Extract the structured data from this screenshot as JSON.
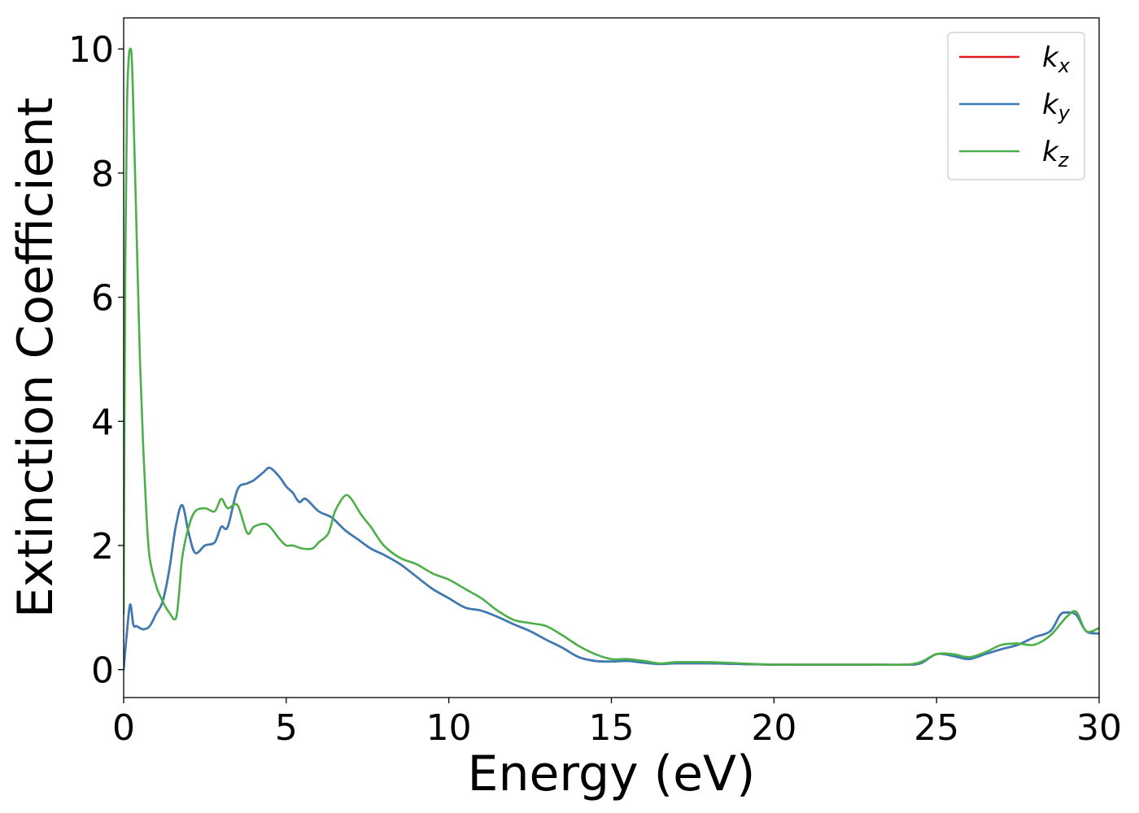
{
  "chart_data": {
    "type": "line",
    "title": "",
    "xlabel": "Energy (eV)",
    "ylabel": "Extinction Coefficient",
    "xlim": [
      0,
      30
    ],
    "ylim": [
      -0.45,
      10.5
    ],
    "xticks": [
      0,
      5,
      10,
      15,
      20,
      25,
      30
    ],
    "yticks": [
      0,
      2,
      4,
      6,
      8,
      10
    ],
    "grid": false,
    "legend_position": "top-right",
    "series": [
      {
        "name": "k",
        "subscript": "x",
        "color": "#e41a1c",
        "x": [
          0,
          0.1,
          0.2,
          0.3,
          0.4,
          0.6,
          0.8,
          1.0,
          1.2,
          1.4,
          1.6,
          1.8,
          2.0,
          2.2,
          2.5,
          2.8,
          3.0,
          3.2,
          3.5,
          3.8,
          4.0,
          4.3,
          4.5,
          4.8,
          5.0,
          5.2,
          5.4,
          5.6,
          6.0,
          6.4,
          6.8,
          7.2,
          7.6,
          8.0,
          8.5,
          9.0,
          9.5,
          10.0,
          10.5,
          11.0,
          11.5,
          12.0,
          12.5,
          13.0,
          13.5,
          14.0,
          14.5,
          15.0,
          15.5,
          16.0,
          16.5,
          17.0,
          18.0,
          19.0,
          20.0,
          21.0,
          22.0,
          23.0,
          24.0,
          24.5,
          25.0,
          25.5,
          26.0,
          26.5,
          27.0,
          27.5,
          28.0,
          28.5,
          28.8,
          29.0,
          29.3,
          29.6,
          30.0
        ],
        "y": [
          0.0,
          0.6,
          1.05,
          0.72,
          0.7,
          0.65,
          0.7,
          0.9,
          1.1,
          1.6,
          2.3,
          2.65,
          2.2,
          1.88,
          2.0,
          2.05,
          2.3,
          2.3,
          2.9,
          3.0,
          3.05,
          3.18,
          3.25,
          3.1,
          2.95,
          2.85,
          2.7,
          2.75,
          2.55,
          2.45,
          2.25,
          2.1,
          1.95,
          1.85,
          1.7,
          1.5,
          1.3,
          1.15,
          1.0,
          0.95,
          0.85,
          0.73,
          0.62,
          0.48,
          0.35,
          0.2,
          0.14,
          0.13,
          0.14,
          0.11,
          0.09,
          0.1,
          0.1,
          0.09,
          0.08,
          0.08,
          0.08,
          0.08,
          0.08,
          0.1,
          0.25,
          0.22,
          0.17,
          0.25,
          0.33,
          0.4,
          0.52,
          0.62,
          0.88,
          0.92,
          0.88,
          0.62,
          0.58
        ]
      },
      {
        "name": "k",
        "subscript": "y",
        "color": "#377eb8",
        "x": [
          0,
          0.1,
          0.2,
          0.3,
          0.4,
          0.6,
          0.8,
          1.0,
          1.2,
          1.4,
          1.6,
          1.8,
          2.0,
          2.2,
          2.5,
          2.8,
          3.0,
          3.2,
          3.5,
          3.8,
          4.0,
          4.3,
          4.5,
          4.8,
          5.0,
          5.2,
          5.4,
          5.6,
          6.0,
          6.4,
          6.8,
          7.2,
          7.6,
          8.0,
          8.5,
          9.0,
          9.5,
          10.0,
          10.5,
          11.0,
          11.5,
          12.0,
          12.5,
          13.0,
          13.5,
          14.0,
          14.5,
          15.0,
          15.5,
          16.0,
          16.5,
          17.0,
          18.0,
          19.0,
          20.0,
          21.0,
          22.0,
          23.0,
          24.0,
          24.5,
          25.0,
          25.5,
          26.0,
          26.5,
          27.0,
          27.5,
          28.0,
          28.5,
          28.8,
          29.0,
          29.3,
          29.6,
          30.0
        ],
        "y": [
          0.0,
          0.6,
          1.05,
          0.72,
          0.7,
          0.65,
          0.7,
          0.9,
          1.1,
          1.6,
          2.3,
          2.65,
          2.2,
          1.88,
          2.0,
          2.05,
          2.3,
          2.3,
          2.9,
          3.0,
          3.05,
          3.18,
          3.25,
          3.1,
          2.95,
          2.85,
          2.7,
          2.75,
          2.55,
          2.45,
          2.25,
          2.1,
          1.95,
          1.85,
          1.7,
          1.5,
          1.3,
          1.15,
          1.0,
          0.95,
          0.85,
          0.73,
          0.62,
          0.48,
          0.35,
          0.2,
          0.14,
          0.13,
          0.14,
          0.11,
          0.09,
          0.1,
          0.1,
          0.09,
          0.08,
          0.08,
          0.08,
          0.08,
          0.08,
          0.1,
          0.25,
          0.22,
          0.17,
          0.25,
          0.33,
          0.4,
          0.52,
          0.62,
          0.88,
          0.92,
          0.88,
          0.62,
          0.58
        ]
      },
      {
        "name": "k",
        "subscript": "z",
        "color": "#4daf4a",
        "x": [
          0,
          0.05,
          0.1,
          0.15,
          0.2,
          0.25,
          0.3,
          0.4,
          0.5,
          0.6,
          0.7,
          0.8,
          1.0,
          1.2,
          1.4,
          1.6,
          1.7,
          1.8,
          2.0,
          2.2,
          2.5,
          2.8,
          3.0,
          3.2,
          3.5,
          3.8,
          4.0,
          4.3,
          4.5,
          4.8,
          5.0,
          5.2,
          5.5,
          5.8,
          6.0,
          6.3,
          6.5,
          6.8,
          7.0,
          7.3,
          7.6,
          8.0,
          8.5,
          9.0,
          9.5,
          10.0,
          10.5,
          11.0,
          11.5,
          12.0,
          12.5,
          13.0,
          13.5,
          14.0,
          14.5,
          15.0,
          15.5,
          16.0,
          16.5,
          17.0,
          18.0,
          19.0,
          20.0,
          21.0,
          22.0,
          23.0,
          24.0,
          24.5,
          25.0,
          25.5,
          26.0,
          26.5,
          27.0,
          27.5,
          28.0,
          28.5,
          29.0,
          29.3,
          29.6,
          30.0
        ],
        "y": [
          0.9,
          6.5,
          9.0,
          9.8,
          10.0,
          9.85,
          9.0,
          7.0,
          5.0,
          3.6,
          2.5,
          1.8,
          1.35,
          1.1,
          0.92,
          0.82,
          1.2,
          1.8,
          2.3,
          2.55,
          2.6,
          2.55,
          2.75,
          2.6,
          2.65,
          2.2,
          2.3,
          2.35,
          2.3,
          2.1,
          2.0,
          2.0,
          1.95,
          1.95,
          2.05,
          2.2,
          2.55,
          2.8,
          2.75,
          2.5,
          2.3,
          2.0,
          1.8,
          1.7,
          1.55,
          1.45,
          1.3,
          1.15,
          0.95,
          0.8,
          0.75,
          0.7,
          0.55,
          0.38,
          0.25,
          0.17,
          0.17,
          0.14,
          0.1,
          0.12,
          0.12,
          0.1,
          0.08,
          0.08,
          0.08,
          0.08,
          0.08,
          0.12,
          0.25,
          0.25,
          0.2,
          0.28,
          0.4,
          0.42,
          0.4,
          0.55,
          0.85,
          0.93,
          0.62,
          0.67
        ]
      }
    ]
  }
}
